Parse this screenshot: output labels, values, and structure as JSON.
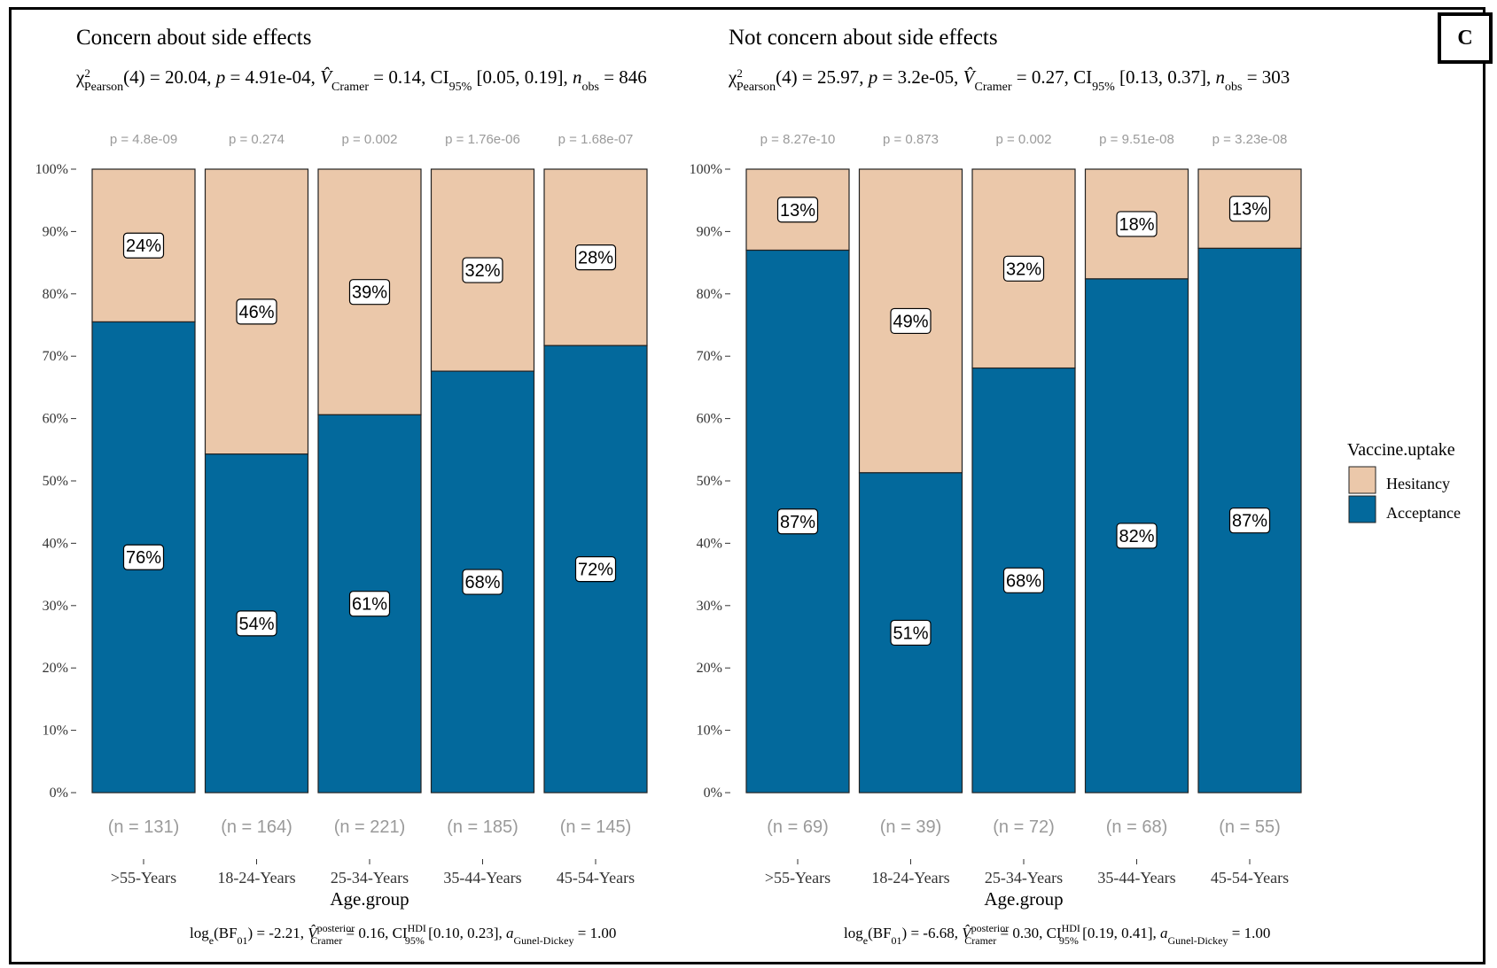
{
  "panel_letter": "C",
  "colors": {
    "hesitancy": "#EBC8AA",
    "acceptance": "#03699C",
    "edge": "#222222"
  },
  "legend": {
    "title": "Vaccine.uptake",
    "items": [
      "Hesitancy",
      "Acceptance"
    ]
  },
  "chart_data": [
    {
      "type": "bar",
      "stacked": true,
      "title": "Concern about side effects",
      "subtitle": {
        "chi_value": "20.04",
        "df": "4",
        "p": "4.91e-04",
        "v_cramer": "0.14",
        "ci": "[0.05, 0.19]",
        "n_obs": "846"
      },
      "caption": {
        "log_bf": "-2.21",
        "v_posterior": "0.16",
        "ci_hdi": "[0.10, 0.23]",
        "a_gunel_dickey": "1.00"
      },
      "xlabel": "Age.group",
      "ylim": [
        0,
        1
      ],
      "yticks": [
        "0%",
        "10%",
        "20%",
        "30%",
        "40%",
        "50%",
        "60%",
        "70%",
        "80%",
        "90%",
        "100%"
      ],
      "categories": [
        ">55-Years",
        "18-24-Years",
        "25-34-Years",
        "35-44-Years",
        "45-54-Years"
      ],
      "p_labels": [
        "p = 4.8e-09",
        "p = 0.274",
        "p = 0.002",
        "p = 1.76e-06",
        "p = 1.68e-07"
      ],
      "n_labels": [
        "(n = 131)",
        "(n = 164)",
        "(n = 221)",
        "(n = 185)",
        "(n = 145)"
      ],
      "series": [
        {
          "name": "Acceptance",
          "values": [
            0.755,
            0.543,
            0.606,
            0.676,
            0.717
          ],
          "labels": [
            "76%",
            "54%",
            "61%",
            "68%",
            "72%"
          ]
        },
        {
          "name": "Hesitancy",
          "values": [
            0.245,
            0.457,
            0.394,
            0.324,
            0.283
          ],
          "labels": [
            "24%",
            "46%",
            "39%",
            "32%",
            "28%"
          ]
        }
      ]
    },
    {
      "type": "bar",
      "stacked": true,
      "title": "Not concern about side effects",
      "subtitle": {
        "chi_value": "25.97",
        "df": "4",
        "p": "3.2e-05",
        "v_cramer": "0.27",
        "ci": "[0.13, 0.37]",
        "n_obs": "303"
      },
      "caption": {
        "log_bf": "-6.68",
        "v_posterior": "0.30",
        "ci_hdi": "[0.19, 0.41]",
        "a_gunel_dickey": "1.00"
      },
      "xlabel": "Age.group",
      "ylim": [
        0,
        1
      ],
      "yticks": [
        "0%",
        "10%",
        "20%",
        "30%",
        "40%",
        "50%",
        "60%",
        "70%",
        "80%",
        "90%",
        "100%"
      ],
      "categories": [
        ">55-Years",
        "18-24-Years",
        "25-34-Years",
        "35-44-Years",
        "45-54-Years"
      ],
      "p_labels": [
        "p = 8.27e-10",
        "p = 0.873",
        "p = 0.002",
        "p = 9.51e-08",
        "p = 3.23e-08"
      ],
      "n_labels": [
        "(n = 69)",
        "(n = 39)",
        "(n = 72)",
        "(n = 68)",
        "(n = 55)"
      ],
      "series": [
        {
          "name": "Acceptance",
          "values": [
            0.87,
            0.513,
            0.681,
            0.824,
            0.873
          ],
          "labels": [
            "87%",
            "51%",
            "68%",
            "82%",
            "87%"
          ]
        },
        {
          "name": "Hesitancy",
          "values": [
            0.13,
            0.487,
            0.319,
            0.176,
            0.127
          ],
          "labels": [
            "13%",
            "49%",
            "32%",
            "18%",
            "13%"
          ]
        }
      ]
    }
  ]
}
